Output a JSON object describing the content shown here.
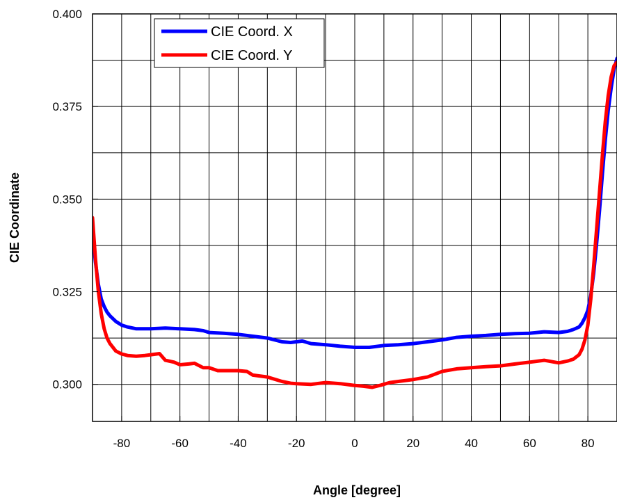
{
  "chart_data": {
    "type": "line",
    "title": "",
    "xlabel": "Angle [degree]",
    "ylabel": "CIE  Coordinate",
    "xlim": [
      -90,
      90
    ],
    "ylim": [
      0.29,
      0.4
    ],
    "xticks": [
      -80,
      -60,
      -40,
      -20,
      0,
      20,
      40,
      60,
      80
    ],
    "xtick_labels": [
      "-80",
      "-60",
      "-40",
      "-20",
      "0",
      "20",
      "40",
      "60",
      "80"
    ],
    "yticks": [
      0.3,
      0.325,
      0.35,
      0.375,
      0.4
    ],
    "ytick_labels": [
      "0.300",
      "0.325",
      "0.350",
      "0.375",
      "0.400"
    ],
    "grid": true,
    "legend_position": "top-left",
    "series": [
      {
        "name": "CIE Coord. X",
        "color": "#0000ff",
        "x": [
          -90,
          -89,
          -88,
          -87,
          -86,
          -85,
          -84,
          -82,
          -80,
          -78,
          -75,
          -72,
          -70,
          -65,
          -60,
          -55,
          -52,
          -50,
          -45,
          -40,
          -35,
          -30,
          -25,
          -22,
          -20,
          -18,
          -15,
          -10,
          -5,
          0,
          5,
          10,
          15,
          20,
          25,
          30,
          35,
          40,
          45,
          50,
          55,
          60,
          65,
          70,
          73,
          75,
          77,
          78,
          79,
          80,
          81,
          82,
          83,
          84,
          85,
          86,
          87,
          88,
          89,
          90
        ],
        "y": [
          0.341,
          0.333,
          0.327,
          0.323,
          0.321,
          0.3195,
          0.3185,
          0.317,
          0.316,
          0.3155,
          0.315,
          0.315,
          0.315,
          0.3152,
          0.315,
          0.3148,
          0.3145,
          0.314,
          0.3138,
          0.3135,
          0.313,
          0.3125,
          0.3115,
          0.3113,
          0.3115,
          0.3117,
          0.311,
          0.3107,
          0.3103,
          0.31,
          0.31,
          0.3105,
          0.3107,
          0.311,
          0.3115,
          0.312,
          0.3127,
          0.313,
          0.3132,
          0.3135,
          0.3137,
          0.3138,
          0.3142,
          0.314,
          0.3143,
          0.3148,
          0.3155,
          0.3165,
          0.318,
          0.32,
          0.324,
          0.33,
          0.338,
          0.347,
          0.357,
          0.366,
          0.374,
          0.38,
          0.385,
          0.388
        ]
      },
      {
        "name": "CIE Coord. Y",
        "color": "#ff0000",
        "x": [
          -90,
          -89,
          -88,
          -87,
          -86,
          -85,
          -84,
          -82,
          -80,
          -78,
          -75,
          -72,
          -70,
          -67,
          -65,
          -62,
          -60,
          -57,
          -55,
          -52,
          -50,
          -47,
          -45,
          -40,
          -37,
          -35,
          -30,
          -25,
          -22,
          -20,
          -15,
          -10,
          -5,
          0,
          3,
          6,
          9,
          12,
          15,
          20,
          25,
          30,
          35,
          40,
          45,
          50,
          55,
          60,
          65,
          70,
          73,
          75,
          77,
          78,
          79,
          80,
          81,
          82,
          83,
          84,
          85,
          86,
          87,
          88,
          89,
          90
        ],
        "y": [
          0.345,
          0.334,
          0.325,
          0.319,
          0.315,
          0.3125,
          0.311,
          0.309,
          0.3082,
          0.3078,
          0.3076,
          0.3078,
          0.308,
          0.3083,
          0.3065,
          0.306,
          0.3053,
          0.3055,
          0.3057,
          0.3045,
          0.3045,
          0.3037,
          0.3037,
          0.3037,
          0.3035,
          0.3025,
          0.302,
          0.3008,
          0.3003,
          0.3002,
          0.3,
          0.3005,
          0.3002,
          0.2997,
          0.2995,
          0.2992,
          0.2998,
          0.3005,
          0.3008,
          0.3013,
          0.302,
          0.3035,
          0.3042,
          0.3045,
          0.3048,
          0.305,
          0.3055,
          0.306,
          0.3065,
          0.3058,
          0.3063,
          0.3068,
          0.308,
          0.3095,
          0.312,
          0.316,
          0.323,
          0.332,
          0.342,
          0.352,
          0.362,
          0.371,
          0.378,
          0.383,
          0.386,
          0.387
        ]
      }
    ]
  }
}
